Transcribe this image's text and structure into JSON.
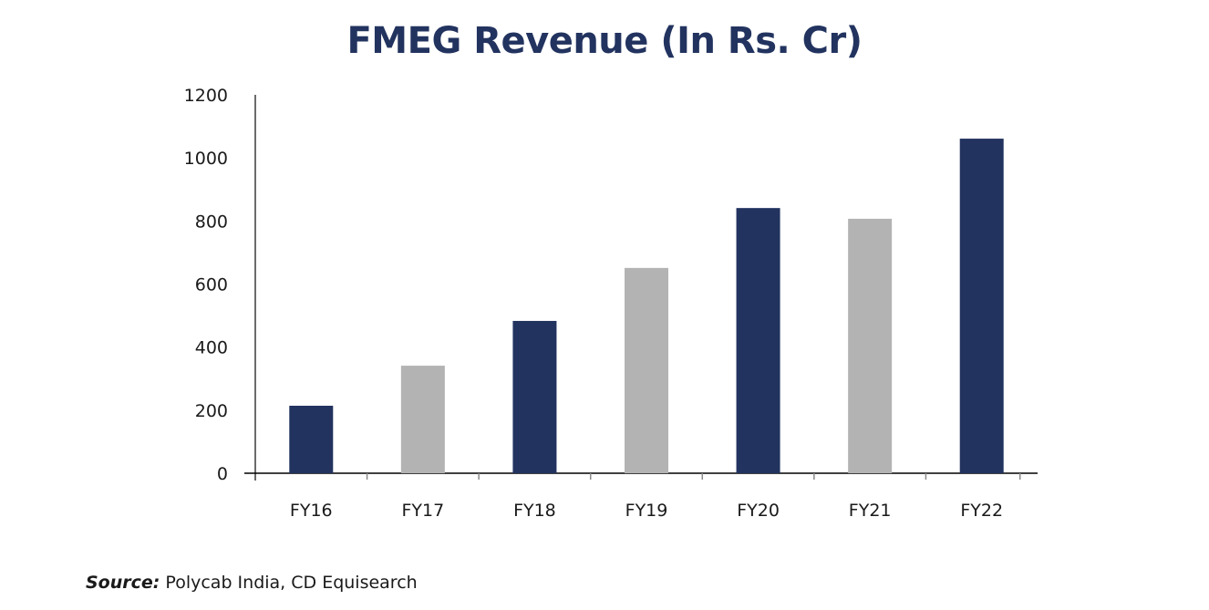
{
  "chart_data": {
    "type": "bar",
    "title": "FMEG Revenue (In Rs. Cr)",
    "xlabel": "",
    "ylabel": "",
    "categories": [
      "FY16",
      "FY17",
      "FY18",
      "FY19",
      "FY20",
      "FY21",
      "FY22"
    ],
    "values": [
      214,
      341,
      483,
      651,
      841,
      807,
      1061
    ],
    "bar_colors": [
      "#22335f",
      "#b3b3b3",
      "#22335f",
      "#b3b3b3",
      "#22335f",
      "#b3b3b3",
      "#22335f"
    ],
    "ylim": [
      0,
      1200
    ],
    "yticks": [
      0,
      200,
      400,
      600,
      800,
      1000,
      1200
    ],
    "ytick_labels": [
      "0",
      "200",
      "400",
      "600",
      "800",
      "1000",
      "1200"
    ],
    "grid": false,
    "legend": "none"
  },
  "source": {
    "label": "Source:",
    "text": " Polycab India, CD Equisearch"
  },
  "colors": {
    "title": "#22335f",
    "dark_bar": "#22335f",
    "light_bar": "#b3b3b3",
    "axis": "#000000"
  }
}
